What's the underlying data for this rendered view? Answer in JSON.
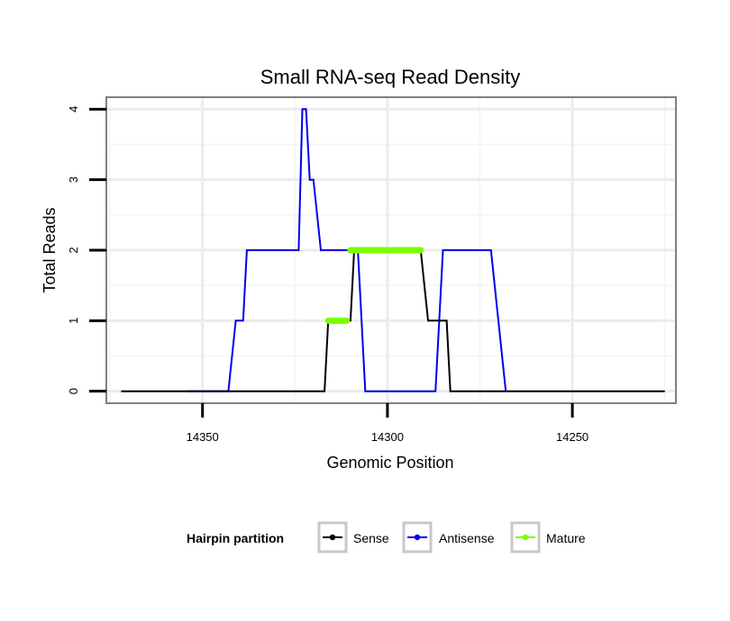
{
  "chart_data": {
    "type": "line",
    "title": "Small RNA-seq Read Density",
    "xlabel": "Genomic Position",
    "ylabel": "Total Reads",
    "x_reversed": true,
    "xlim": [
      14376,
      14222
    ],
    "ylim": [
      -0.17,
      4.17
    ],
    "x_ticks": [
      14350,
      14300,
      14250
    ],
    "y_ticks": [
      0,
      1,
      2,
      3,
      4
    ],
    "grid": true,
    "legend": {
      "title": "Hairpin partition",
      "position": "bottom",
      "entries": [
        {
          "label": "Sense",
          "color": "#000000"
        },
        {
          "label": "Antisense",
          "color": "#0000ee"
        },
        {
          "label": "Mature",
          "color": "#7cfc00"
        }
      ]
    },
    "series": [
      {
        "name": "Antisense",
        "color": "#0000ee",
        "x": [
          14354,
          14343,
          14341,
          14339,
          14338,
          14324,
          14323,
          14322,
          14321,
          14320,
          14320,
          14318,
          14312,
          14308,
          14306,
          14287,
          14285,
          14272,
          14268
        ],
        "y": [
          0,
          0,
          1,
          1,
          2,
          2,
          4,
          4,
          3,
          3,
          3,
          2,
          2,
          2,
          0,
          0,
          2,
          2,
          0
        ]
      },
      {
        "name": "Sense",
        "color": "#000000",
        "x": [
          14372,
          14317,
          14316,
          14310,
          14309,
          14291,
          14289,
          14284,
          14283,
          14279,
          14279,
          14268,
          14225
        ],
        "y": [
          0,
          0,
          1,
          1,
          2,
          2,
          1,
          1,
          0,
          0,
          0,
          0,
          0
        ]
      },
      {
        "name": "Mature",
        "color": "#7cfc00",
        "segments": [
          {
            "x": [
              14316,
              14311
            ],
            "y": [
              1,
              1
            ]
          },
          {
            "x": [
              14310,
              14291
            ],
            "y": [
              2,
              2
            ]
          }
        ]
      }
    ]
  }
}
